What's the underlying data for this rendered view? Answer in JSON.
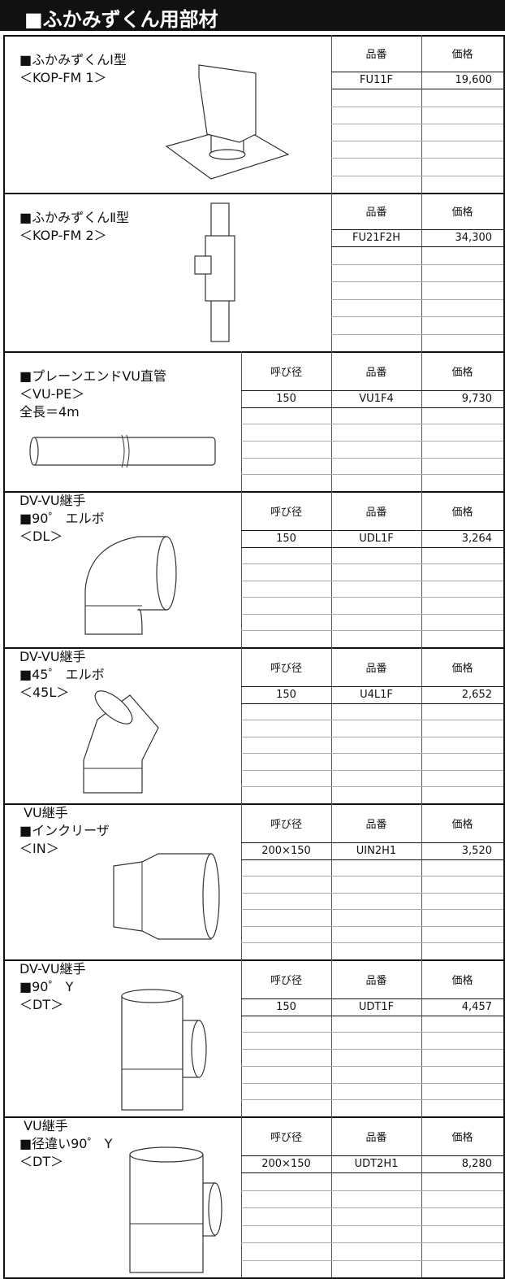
{
  "header": {
    "title": "■ふかみずくん用部材"
  },
  "sections": [
    {
      "lines": [
        "■ふかみずくんⅠ型",
        "＜KOP-FM 1＞"
      ],
      "columns": [
        "品番",
        "価格"
      ],
      "rows": [
        [
          "FU11F",
          "19,600"
        ]
      ]
    },
    {
      "lines": [
        "■ふかみずくんⅡ型",
        "＜KOP-FM 2＞"
      ],
      "columns": [
        "品番",
        "価格"
      ],
      "rows": [
        [
          "FU21F2H",
          "34,300"
        ]
      ]
    },
    {
      "lines": [
        "■プレーンエンドVU直管",
        "＜VU-PE＞",
        "全長＝4m"
      ],
      "columns": [
        "呼び径",
        "品番",
        "価格"
      ],
      "rows": [
        [
          "150",
          "VU1F4",
          "9,730"
        ]
      ]
    },
    {
      "lines": [
        "DV-VU継手",
        "■90゜ エルボ",
        "＜DL＞"
      ],
      "columns": [
        "呼び径",
        "品番",
        "価格"
      ],
      "rows": [
        [
          "150",
          "UDL1F",
          "3,264"
        ]
      ]
    },
    {
      "lines": [
        "DV-VU継手",
        "■45゜ エルボ",
        "＜45L＞"
      ],
      "columns": [
        "呼び径",
        "品番",
        "価格"
      ],
      "rows": [
        [
          "150",
          "U4L1F",
          "2,652"
        ]
      ]
    },
    {
      "lines": [
        " VU継手",
        "■インクリーザ",
        "＜IN＞"
      ],
      "columns": [
        "呼び径",
        "品番",
        "価格"
      ],
      "rows": [
        [
          "200×150",
          "UIN2H1",
          "3,520"
        ]
      ]
    },
    {
      "lines": [
        "DV-VU継手",
        "■90゜ Y",
        "＜DT＞"
      ],
      "columns": [
        "呼び径",
        "品番",
        "価格"
      ],
      "rows": [
        [
          "150",
          "UDT1F",
          "4,457"
        ]
      ]
    },
    {
      "lines": [
        " VU継手",
        "■径違い90゜ Y",
        "＜DT＞"
      ],
      "columns": [
        "呼び径",
        "品番",
        "価格"
      ],
      "rows": [
        [
          "200×150",
          "UDT2H1",
          "8,280"
        ]
      ]
    }
  ]
}
